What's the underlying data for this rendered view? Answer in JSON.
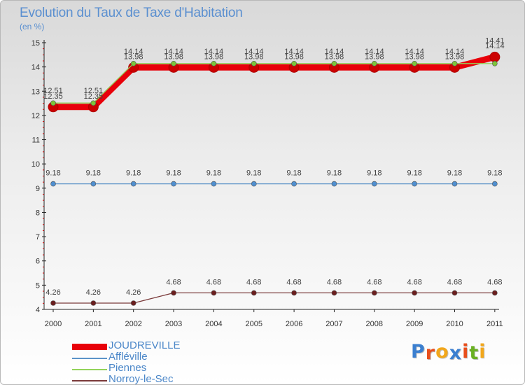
{
  "header": {
    "title": "Evolution du Taux de Taxe d'Habitation",
    "subtitle": "(en %)"
  },
  "logo": {
    "text": "Proxiti",
    "letters": [
      "P",
      "r",
      "o",
      "x",
      "i",
      "t",
      "i"
    ],
    "colors": [
      "#3b7fd0",
      "#e84e1b",
      "#f2a71b",
      "#3b7fd0",
      "#e84e1b",
      "#6ab023",
      "#f2a71b"
    ]
  },
  "chart_data": {
    "type": "line",
    "title": "Evolution du Taux de Taxe d'Habitation",
    "ylabel": "(en %)",
    "xlabel": "",
    "ylim": [
      4,
      15
    ],
    "yticks": [
      "4",
      "5",
      "6",
      "7",
      "8",
      "9",
      "10",
      "11",
      "12",
      "13",
      "14",
      "15"
    ],
    "grid": false,
    "legend_position": "bottom-left",
    "x": [
      "2000",
      "2001",
      "2002",
      "2003",
      "2004",
      "2005",
      "2006",
      "2007",
      "2008",
      "2009",
      "2010",
      "2011"
    ],
    "series": [
      {
        "name": "JOUDREVILLE",
        "color": "#e8000a",
        "marker_color": "#cc0000",
        "emphasis": true,
        "values": [
          12.35,
          12.35,
          13.98,
          13.98,
          13.98,
          13.98,
          13.98,
          13.98,
          13.98,
          13.98,
          13.98,
          14.41
        ],
        "labels": [
          "12.35",
          "12.35",
          "13.98",
          "13.98",
          "13.98",
          "13.98",
          "13.98",
          "13.98",
          "13.98",
          "13.98",
          "13.98",
          "14.41"
        ]
      },
      {
        "name": "Affléville",
        "color": "#5b93c8",
        "marker_color": "#4f8fd0",
        "emphasis": false,
        "values": [
          9.18,
          9.18,
          9.18,
          9.18,
          9.18,
          9.18,
          9.18,
          9.18,
          9.18,
          9.18,
          9.18,
          9.18
        ],
        "labels": [
          "9.18",
          "9.18",
          "9.18",
          "9.18",
          "9.18",
          "9.18",
          "9.18",
          "9.18",
          "9.18",
          "9.18",
          "9.18",
          "9.18"
        ]
      },
      {
        "name": "Piennes",
        "color": "#93d35a",
        "marker_color": "#7dc53a",
        "emphasis": false,
        "values": [
          12.51,
          12.51,
          14.14,
          14.14,
          14.14,
          14.14,
          14.14,
          14.14,
          14.14,
          14.14,
          14.14,
          14.14
        ],
        "labels": [
          "12.51",
          "12.51",
          "14.14",
          "14.14",
          "14.14",
          "14.14",
          "14.14",
          "14.14",
          "14.14",
          "14.14",
          "14.14",
          "14.14"
        ]
      },
      {
        "name": "Norroy-le-Sec",
        "color": "#7a3a3a",
        "marker_color": "#6b1e1e",
        "emphasis": false,
        "values": [
          4.26,
          4.26,
          4.26,
          4.68,
          4.68,
          4.68,
          4.68,
          4.68,
          4.68,
          4.68,
          4.68,
          4.68
        ],
        "labels": [
          "4.26",
          "4.26",
          "4.26",
          "4.68",
          "4.68",
          "4.68",
          "4.68",
          "4.68",
          "4.68",
          "4.68",
          "4.68",
          "4.68"
        ]
      }
    ]
  }
}
